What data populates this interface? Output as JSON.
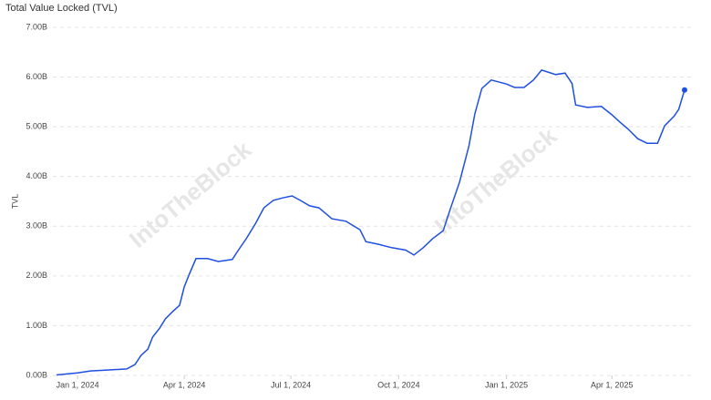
{
  "chart_data": {
    "type": "line",
    "title": "Total Value Locked (TVL)",
    "y_label": "TVL",
    "watermark": "IntoTheBlock",
    "x": [
      "2023-12-14",
      "2024-01-01",
      "2024-01-12",
      "2024-01-28",
      "2024-02-12",
      "2024-02-19",
      "2024-02-24",
      "2024-03-01",
      "2024-03-05",
      "2024-03-11",
      "2024-03-16",
      "2024-03-22",
      "2024-03-28",
      "2024-04-01",
      "2024-04-05",
      "2024-04-11",
      "2024-04-21",
      "2024-04-30",
      "2024-05-12",
      "2024-05-17",
      "2024-05-24",
      "2024-06-01",
      "2024-06-08",
      "2024-06-16",
      "2024-06-24",
      "2024-07-02",
      "2024-07-09",
      "2024-07-17",
      "2024-07-25",
      "2024-08-05",
      "2024-08-17",
      "2024-08-29",
      "2024-09-03",
      "2024-09-13",
      "2024-09-25",
      "2024-10-07",
      "2024-10-14",
      "2024-10-22",
      "2024-10-30",
      "2024-11-08",
      "2024-11-14",
      "2024-11-22",
      "2024-11-30",
      "2024-12-05",
      "2024-12-11",
      "2024-12-19",
      "2025-01-01",
      "2025-01-08",
      "2025-01-16",
      "2025-01-24",
      "2025-01-31",
      "2025-02-12",
      "2025-02-20",
      "2025-02-26",
      "2025-03-01",
      "2025-03-11",
      "2025-03-23",
      "2025-04-01",
      "2025-04-07",
      "2025-04-15",
      "2025-04-23",
      "2025-05-01",
      "2025-05-10",
      "2025-05-16",
      "2025-05-24",
      "2025-05-28",
      "2025-06-02"
    ],
    "series": [
      {
        "name": "TVL",
        "color": "#1f4fe0",
        "values": [
          0.01,
          0.05,
          0.09,
          0.11,
          0.13,
          0.22,
          0.4,
          0.53,
          0.77,
          0.95,
          1.14,
          1.28,
          1.41,
          1.78,
          2.02,
          2.35,
          2.35,
          2.29,
          2.33,
          2.51,
          2.75,
          3.06,
          3.37,
          3.52,
          3.57,
          3.61,
          3.52,
          3.41,
          3.37,
          3.15,
          3.1,
          2.93,
          2.69,
          2.64,
          2.57,
          2.52,
          2.42,
          2.57,
          2.75,
          2.91,
          3.34,
          3.89,
          4.62,
          5.26,
          5.77,
          5.94,
          5.86,
          5.79,
          5.79,
          5.94,
          6.14,
          6.05,
          6.08,
          5.87,
          5.44,
          5.39,
          5.41,
          5.24,
          5.11,
          4.95,
          4.76,
          4.67,
          4.67,
          5.02,
          5.21,
          5.35,
          5.74
        ]
      }
    ],
    "xlim": [
      "2023-12-14",
      "2025-06-02"
    ],
    "xticks": [
      {
        "value": "2024-01-01",
        "label": "Jan 1, 2024"
      },
      {
        "value": "2024-04-01",
        "label": "Apr 1, 2024"
      },
      {
        "value": "2024-07-01",
        "label": "Jul 1, 2024"
      },
      {
        "value": "2024-10-01",
        "label": "Oct 1, 2024"
      },
      {
        "value": "2025-01-01",
        "label": "Jan 1, 2025"
      },
      {
        "value": "2025-04-01",
        "label": "Apr 1, 2025"
      }
    ],
    "ylim": [
      0,
      7
    ],
    "yticks": [
      {
        "value": 0,
        "label": "0.00B"
      },
      {
        "value": 1,
        "label": "1.00B"
      },
      {
        "value": 2,
        "label": "2.00B"
      },
      {
        "value": 3,
        "label": "3.00B"
      },
      {
        "value": 4,
        "label": "4.00B"
      },
      {
        "value": 5,
        "label": "5.00B"
      },
      {
        "value": 6,
        "label": "6.00B"
      },
      {
        "value": 7,
        "label": "7.00B"
      }
    ],
    "grid": true
  }
}
